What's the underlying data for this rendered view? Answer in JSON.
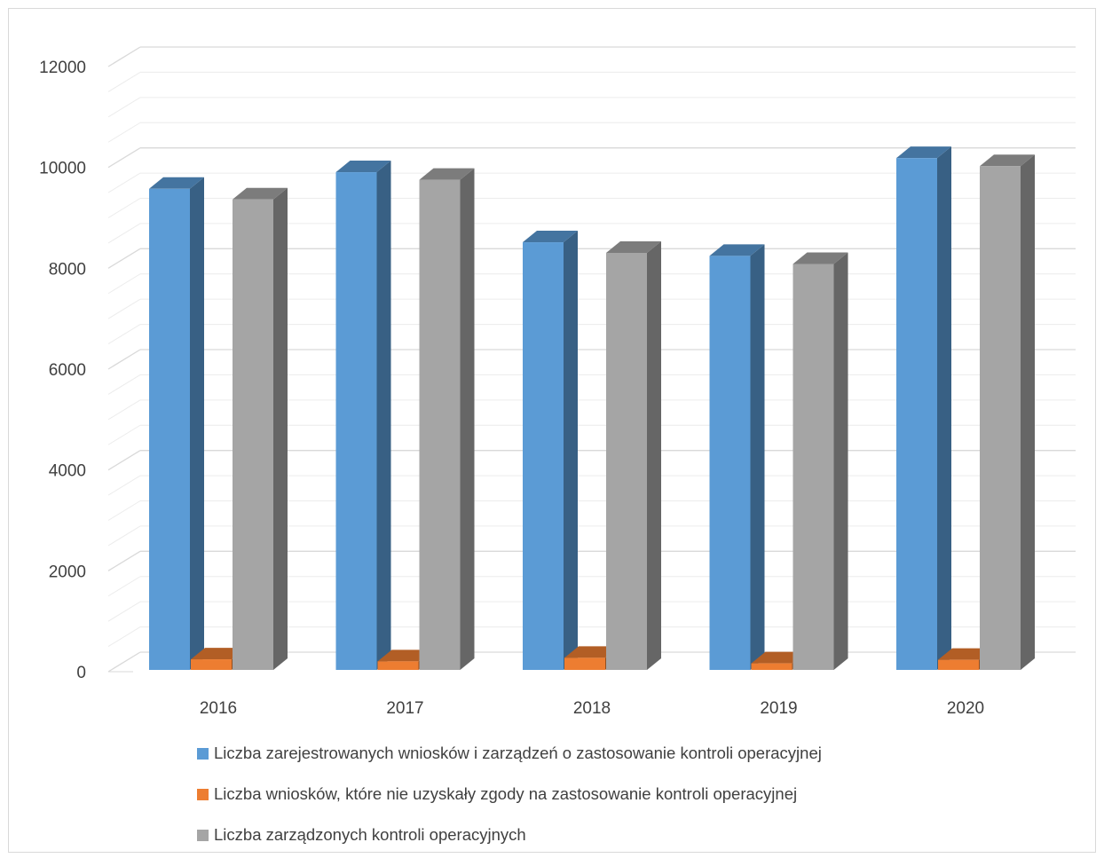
{
  "chart_data": {
    "type": "bar",
    "categories": [
      "2016",
      "2017",
      "2018",
      "2019",
      "2020"
    ],
    "series": [
      {
        "name": "Liczba zarejestrowanych wniosków i zarządzeń o zastosowanie kontroli operacyjnej",
        "color": "#5b9bd5",
        "values": [
          9540,
          9870,
          8480,
          8210,
          10150
        ]
      },
      {
        "name": "Liczba wniosków, które nie uzyskały zgody na zastosowanie kontroli operacyjnej",
        "color": "#ed7d31",
        "values": [
          210,
          170,
          240,
          130,
          200
        ]
      },
      {
        "name": "Liczba zarządzonych kontroli operacyjnych",
        "color": "#a5a5a5",
        "values": [
          9330,
          9720,
          8270,
          8050,
          9990
        ]
      }
    ],
    "ylim": [
      0,
      12000
    ],
    "yticks": [
      "0",
      "2000",
      "4000",
      "6000",
      "8000",
      "10000",
      "12000"
    ],
    "grid": true,
    "three_d": true,
    "legend_position": "bottom"
  }
}
